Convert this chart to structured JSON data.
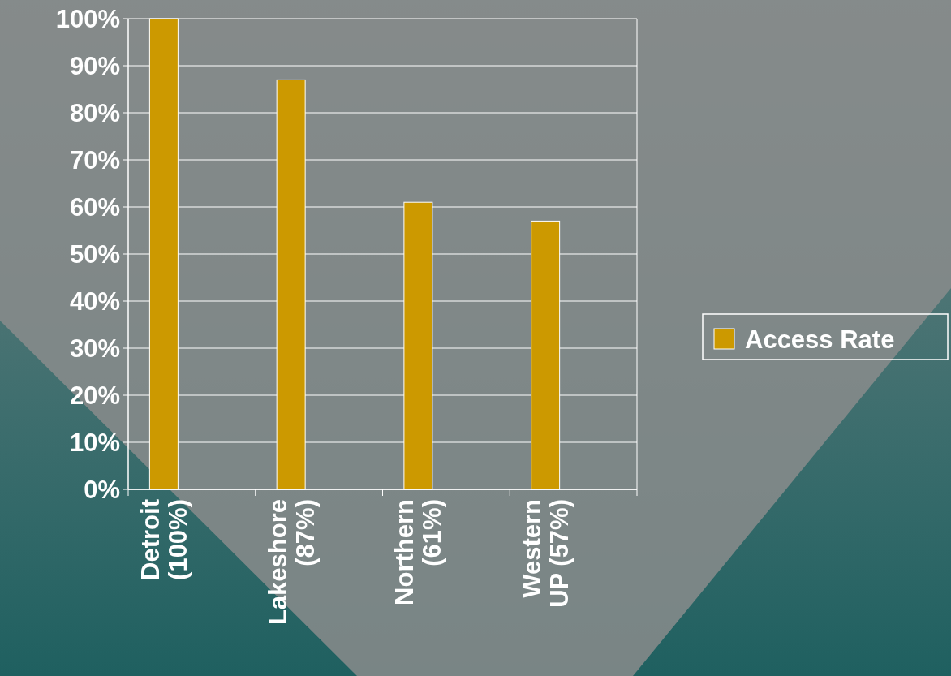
{
  "chart_data": {
    "type": "bar",
    "categories": [
      "Detroit\n(100%)",
      "Lakeshore\n(87%)",
      "Northern\n(61%)",
      "Western\nUP (57%)"
    ],
    "series": [
      {
        "name": "Access Rate",
        "color": "#cc9900",
        "values": [
          100,
          87,
          61,
          57
        ]
      }
    ],
    "ylim": [
      0,
      100
    ],
    "yticks": [
      {
        "value": 0,
        "label": "0%"
      },
      {
        "value": 10,
        "label": "10%"
      },
      {
        "value": 20,
        "label": "20%"
      },
      {
        "value": 30,
        "label": "30%"
      },
      {
        "value": 40,
        "label": "40%"
      },
      {
        "value": 50,
        "label": "50%"
      },
      {
        "value": 60,
        "label": "60%"
      },
      {
        "value": 70,
        "label": "70%"
      },
      {
        "value": 80,
        "label": "80%"
      },
      {
        "value": 90,
        "label": "90%"
      },
      {
        "value": 100,
        "label": "100%"
      }
    ],
    "grid": "y",
    "legend": "right"
  }
}
